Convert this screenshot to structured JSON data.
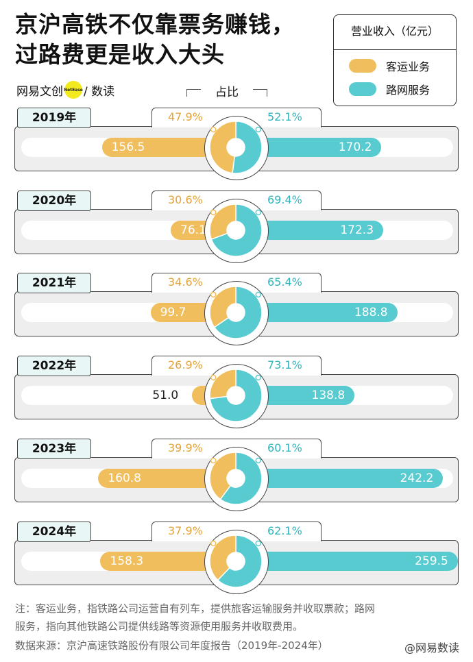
{
  "title_line1": "京沪高铁不仅靠票务赚钱，",
  "title_line2": "过路费更是收入大头",
  "brand": {
    "left": "网易文创",
    "dot": "NetEase",
    "right": "/ 数读"
  },
  "legend": {
    "title": "营业收入（亿元）",
    "items": [
      {
        "label": "客运业务",
        "color": "#f0be5c"
      },
      {
        "label": "路网服务",
        "color": "#58cbd0"
      }
    ]
  },
  "pct_header": "占比",
  "chart_data": {
    "type": "bar",
    "title": "京沪高铁不仅靠票务赚钱，过路费更是收入大头",
    "unit": "亿元",
    "categories": [
      "2019年",
      "2020年",
      "2021年",
      "2022年",
      "2023年",
      "2024年"
    ],
    "series": [
      {
        "name": "客运业务",
        "color": "#f0be5c",
        "values": [
          156.5,
          76.1,
          99.7,
          51.0,
          160.8,
          158.3
        ],
        "share": [
          "47.9%",
          "30.6%",
          "34.6%",
          "26.9%",
          "39.9%",
          "37.9%"
        ]
      },
      {
        "name": "路网服务",
        "color": "#58cbd0",
        "values": [
          170.2,
          172.3,
          188.8,
          138.8,
          242.2,
          259.5
        ],
        "share": [
          "52.1%",
          "69.4%",
          "65.4%",
          "73.1%",
          "60.1%",
          "62.1%"
        ]
      }
    ]
  },
  "notes": {
    "line1": "注：客运业务，指铁路公司运营自有列车，提供旅客运输服务并收取票款；路网",
    "line2": "服务，指向其他铁路公司提供线路等资源使用服务并收取费用。",
    "line3": "数据来源：京沪高速铁路股份有限公司年度报告（2019年-2024年）"
  },
  "watermark": "@网易数读"
}
